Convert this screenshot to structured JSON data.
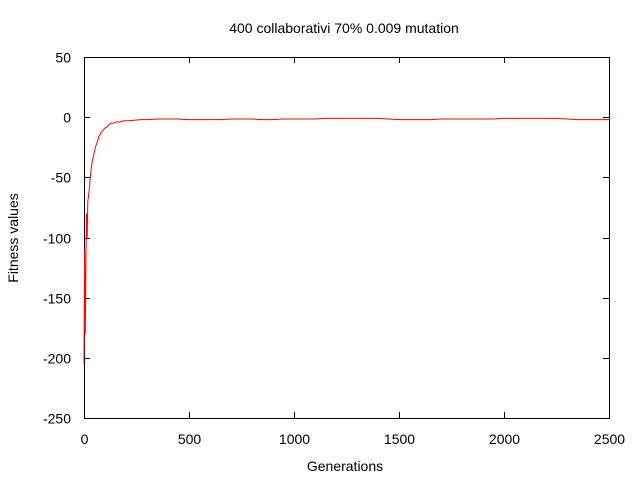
{
  "chart_data": {
    "type": "line",
    "title": "400 collaborativi 70% 0.009 mutation",
    "xlabel": "Generations",
    "ylabel": "Fitness values",
    "xlim": [
      0,
      2500
    ],
    "ylim": [
      -250,
      50
    ],
    "xticks": [
      0,
      500,
      1000,
      1500,
      2000,
      2500
    ],
    "yticks": [
      -250,
      -200,
      -150,
      -100,
      -50,
      0,
      50
    ],
    "grid": false,
    "legend": "none",
    "series": [
      {
        "color": "#ff0000",
        "points": [
          [
            0,
            -205
          ],
          [
            3,
            -110
          ],
          [
            6,
            -180
          ],
          [
            9,
            -120
          ],
          [
            12,
            -80
          ],
          [
            15,
            -100
          ],
          [
            18,
            -70
          ],
          [
            22,
            -65
          ],
          [
            26,
            -58
          ],
          [
            30,
            -50
          ],
          [
            35,
            -42
          ],
          [
            40,
            -36
          ],
          [
            45,
            -32
          ],
          [
            50,
            -28
          ],
          [
            55,
            -25
          ],
          [
            60,
            -22
          ],
          [
            65,
            -20
          ],
          [
            70,
            -16
          ],
          [
            75,
            -15
          ],
          [
            80,
            -13
          ],
          [
            90,
            -11
          ],
          [
            100,
            -9
          ],
          [
            110,
            -8
          ],
          [
            120,
            -6
          ],
          [
            130,
            -5
          ],
          [
            140,
            -5
          ],
          [
            150,
            -4
          ],
          [
            170,
            -4
          ],
          [
            190,
            -3
          ],
          [
            210,
            -3
          ],
          [
            240,
            -2.5
          ],
          [
            270,
            -2
          ],
          [
            300,
            -2
          ],
          [
            350,
            -1.5
          ],
          [
            400,
            -1.5
          ],
          [
            450,
            -1.5
          ],
          [
            500,
            -2
          ],
          [
            550,
            -2
          ],
          [
            600,
            -2
          ],
          [
            650,
            -2
          ],
          [
            700,
            -1.5
          ],
          [
            750,
            -1.5
          ],
          [
            800,
            -1.5
          ],
          [
            850,
            -2
          ],
          [
            900,
            -2
          ],
          [
            950,
            -1.5
          ],
          [
            1000,
            -1.5
          ],
          [
            1050,
            -1.5
          ],
          [
            1100,
            -1.5
          ],
          [
            1150,
            -1
          ],
          [
            1200,
            -1
          ],
          [
            1250,
            -1
          ],
          [
            1300,
            -1
          ],
          [
            1350,
            -1
          ],
          [
            1400,
            -1
          ],
          [
            1450,
            -1.5
          ],
          [
            1500,
            -2
          ],
          [
            1550,
            -2
          ],
          [
            1600,
            -2
          ],
          [
            1650,
            -2
          ],
          [
            1700,
            -1.5
          ],
          [
            1750,
            -1.5
          ],
          [
            1800,
            -1.5
          ],
          [
            1850,
            -1.5
          ],
          [
            1900,
            -1.5
          ],
          [
            1950,
            -1.5
          ],
          [
            2000,
            -1
          ],
          [
            2050,
            -1
          ],
          [
            2100,
            -1
          ],
          [
            2150,
            -1
          ],
          [
            2200,
            -1
          ],
          [
            2250,
            -1
          ],
          [
            2300,
            -1.5
          ],
          [
            2350,
            -2
          ],
          [
            2400,
            -2
          ],
          [
            2450,
            -2
          ],
          [
            2500,
            -2
          ]
        ]
      }
    ]
  }
}
